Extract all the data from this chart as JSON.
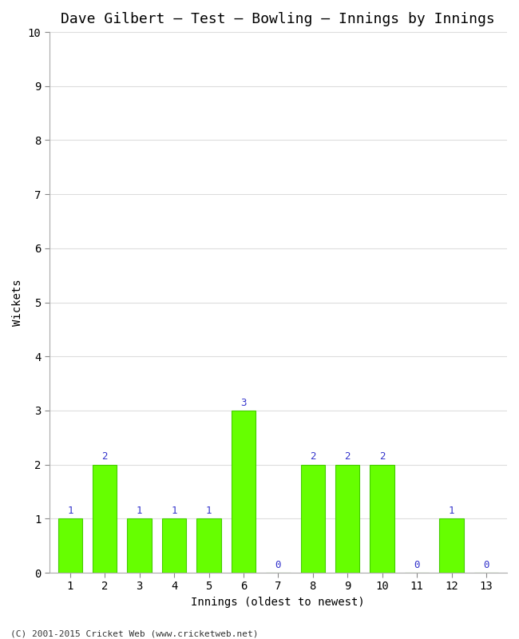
{
  "title": "Dave Gilbert – Test – Bowling – Innings by Innings",
  "xlabel": "Innings (oldest to newest)",
  "ylabel": "Wickets",
  "categories": [
    "1",
    "2",
    "3",
    "4",
    "5",
    "6",
    "7",
    "8",
    "9",
    "10",
    "11",
    "12",
    "13"
  ],
  "values": [
    1,
    2,
    1,
    1,
    1,
    3,
    0,
    2,
    2,
    2,
    0,
    1,
    0
  ],
  "bar_color": "#66ff00",
  "bar_edge_color": "#44cc00",
  "label_color": "#3333cc",
  "ylim": [
    0,
    10
  ],
  "yticks": [
    0,
    1,
    2,
    3,
    4,
    5,
    6,
    7,
    8,
    9,
    10
  ],
  "background_color": "#ffffff",
  "grid_color": "#dddddd",
  "title_fontsize": 13,
  "axis_fontsize": 10,
  "label_fontsize": 9,
  "footer": "(C) 2001-2015 Cricket Web (www.cricketweb.net)"
}
